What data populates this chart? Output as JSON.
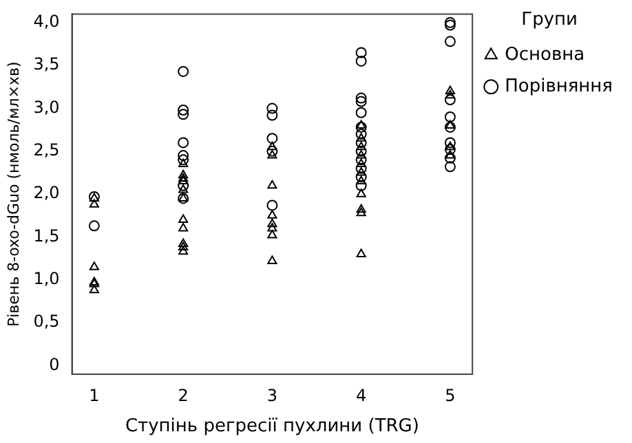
{
  "chart_data": {
    "type": "scatter",
    "xlabel": "Ступінь регресії пухлини (TRG)",
    "ylabel": "Рівень 8-oxo-dGuo (нмоль/мл×хв)",
    "legend_title": "Групи",
    "legend": "right",
    "grid": false,
    "xlim": [
      0.75,
      5.25
    ],
    "xticks": [
      1,
      2,
      3,
      4,
      5
    ],
    "ylim": [
      -0.1,
      4.1
    ],
    "yticks": [
      0,
      {
        "value": 0.5,
        "label": "0,5"
      },
      {
        "value": 1,
        "label": "1,0"
      },
      {
        "value": 1.5,
        "label": "1,5"
      },
      {
        "value": 2,
        "label": "2,0"
      },
      {
        "value": 2.5,
        "label": "2,5"
      },
      {
        "value": 3,
        "label": "3,0"
      },
      {
        "value": 3.5,
        "label": "3,5"
      },
      {
        "value": 4,
        "label": "4,0"
      }
    ],
    "series": [
      {
        "name": "Основна",
        "color": "#000000",
        "marker": "triangle",
        "x": [
          1,
          1,
          1,
          1,
          1,
          1,
          2,
          2,
          2,
          2,
          2,
          2,
          2,
          2,
          2,
          2,
          2,
          3,
          3,
          3,
          3,
          3,
          3,
          3,
          3,
          4,
          4,
          4,
          4,
          4,
          4,
          4,
          4,
          4,
          4,
          4,
          5,
          5,
          5,
          5,
          5
        ],
        "values": [
          1.95,
          1.88,
          1.15,
          0.97,
          0.95,
          0.88,
          2.35,
          2.22,
          2.18,
          2.15,
          2.05,
          1.95,
          1.7,
          1.6,
          1.42,
          1.38,
          1.33,
          2.55,
          2.45,
          2.1,
          1.75,
          1.65,
          1.6,
          1.52,
          1.22,
          2.8,
          2.65,
          2.55,
          2.45,
          2.35,
          2.25,
          2.15,
          2.0,
          1.82,
          1.78,
          1.3,
          3.2,
          3.15,
          2.8,
          2.55,
          2.45
        ]
      },
      {
        "name": "Порівняння",
        "color": "#000000",
        "marker": "circle",
        "x": [
          1,
          1,
          2,
          2,
          2,
          2,
          2,
          2,
          2,
          2,
          3,
          3,
          3,
          3,
          3,
          4,
          4,
          4,
          4,
          4,
          4,
          4,
          4,
          4,
          4,
          4,
          4,
          4,
          5,
          5,
          5,
          5,
          5,
          5,
          5,
          5,
          5,
          5
        ],
        "values": [
          1.97,
          1.63,
          3.43,
          2.98,
          2.93,
          2.6,
          2.45,
          2.4,
          2.1,
          1.95,
          3.0,
          2.92,
          2.65,
          2.5,
          1.87,
          3.65,
          3.55,
          3.12,
          3.08,
          2.95,
          2.78,
          2.7,
          2.6,
          2.5,
          2.4,
          2.3,
          2.2,
          2.1,
          4.0,
          3.97,
          3.78,
          3.1,
          2.9,
          2.78,
          2.6,
          2.52,
          2.42,
          2.32
        ]
      }
    ]
  }
}
